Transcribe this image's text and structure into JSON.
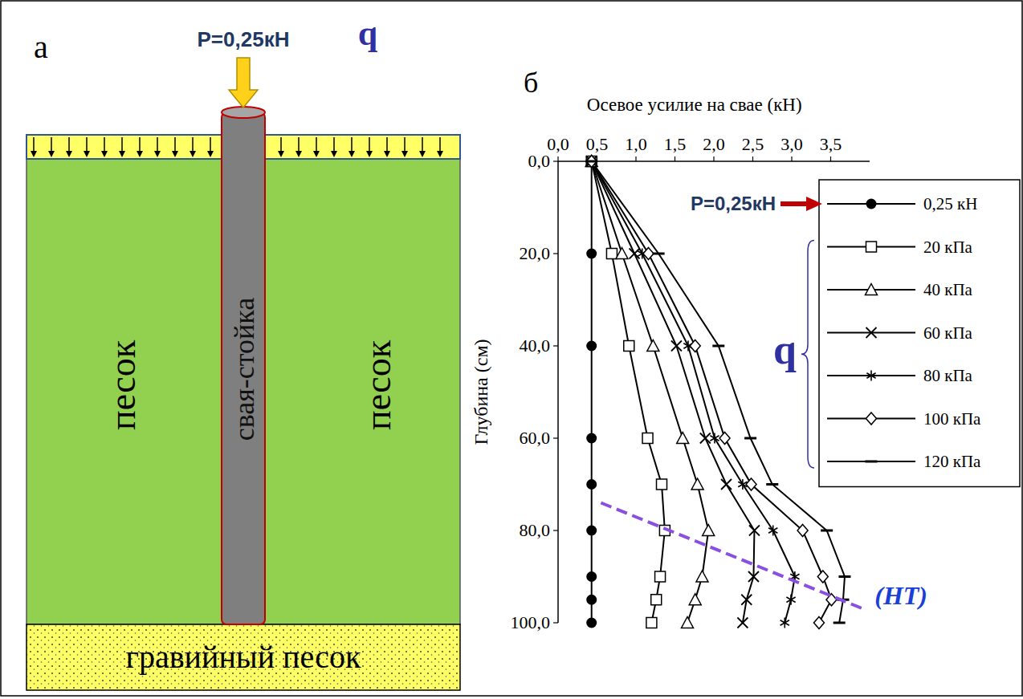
{
  "panel_a": {
    "letter": "а",
    "load_label": "P=0,25кН",
    "surcharge_label": "q",
    "soil_left": "песок",
    "soil_right": "песок",
    "pile_label": "свая-стойка",
    "base_layer": "гравийный песок"
  },
  "chart_data": {
    "type": "line",
    "x_label": "Осевое усилие на свае (кН)",
    "y_label": "Глубина (см)",
    "y": [
      0,
      20,
      40,
      60,
      70,
      80,
      90,
      95,
      100
    ],
    "xlim": [
      0,
      4.0
    ],
    "ylim": [
      0,
      100
    ],
    "xticks": [
      {
        "value": 0,
        "label": "0,0"
      },
      {
        "value": 0.5,
        "label": "0,5"
      },
      {
        "value": 1.0,
        "label": "1,0"
      },
      {
        "value": 1.5,
        "label": "1,5"
      },
      {
        "value": 2.0,
        "label": "2,0"
      },
      {
        "value": 2.5,
        "label": "2,5"
      },
      {
        "value": 3.0,
        "label": "3,0"
      },
      {
        "value": 3.5,
        "label": "3,5"
      }
    ],
    "yticks": [
      {
        "value": 0,
        "label": "0,0"
      },
      {
        "value": 20,
        "label": "20,0"
      },
      {
        "value": 40,
        "label": "40,0"
      },
      {
        "value": 60,
        "label": "60,0"
      },
      {
        "value": 80,
        "label": "80,0"
      },
      {
        "value": 100,
        "label": "100,0"
      }
    ],
    "grid": false,
    "legend": "upper right",
    "color": "#000000",
    "line_style": "solid",
    "series": [
      {
        "name": "0,25 кН",
        "marker": "circle",
        "values": [
          0.43,
          0.43,
          0.43,
          0.43,
          0.43,
          0.43,
          0.43,
          0.43,
          0.43
        ]
      },
      {
        "name": "20 кПа",
        "marker": "square",
        "values": [
          0.43,
          0.69,
          0.91,
          1.15,
          1.33,
          1.37,
          1.31,
          1.26,
          1.2
        ]
      },
      {
        "name": "40 кПа",
        "marker": "triangle",
        "values": [
          0.43,
          0.82,
          1.22,
          1.6,
          1.79,
          1.93,
          1.85,
          1.76,
          1.66
        ]
      },
      {
        "name": "60 кПа",
        "marker": "x",
        "values": [
          0.43,
          0.98,
          1.52,
          1.89,
          2.16,
          2.52,
          2.51,
          2.42,
          2.37
        ]
      },
      {
        "name": "80 кПа",
        "marker": "star",
        "values": [
          0.43,
          1.08,
          1.67,
          2.01,
          2.37,
          2.76,
          3.04,
          2.99,
          2.91
        ]
      },
      {
        "name": "100 кПа",
        "marker": "diamond",
        "values": [
          0.43,
          1.16,
          1.76,
          2.14,
          2.48,
          3.14,
          3.4,
          3.51,
          3.35
        ]
      },
      {
        "name": "120 кПа",
        "marker": "dash",
        "values": [
          0.43,
          1.29,
          2.06,
          2.47,
          2.75,
          3.45,
          3.68,
          3.66,
          3.61
        ]
      }
    ],
    "annotations": {
      "panel_letter": "б",
      "load_arrow": "P=0,25кН",
      "load_group": "q",
      "ht_label": "(НТ)",
      "ht_line": {
        "x": [
          0.55,
          3.92
        ],
        "y": [
          74,
          97
        ]
      }
    }
  }
}
